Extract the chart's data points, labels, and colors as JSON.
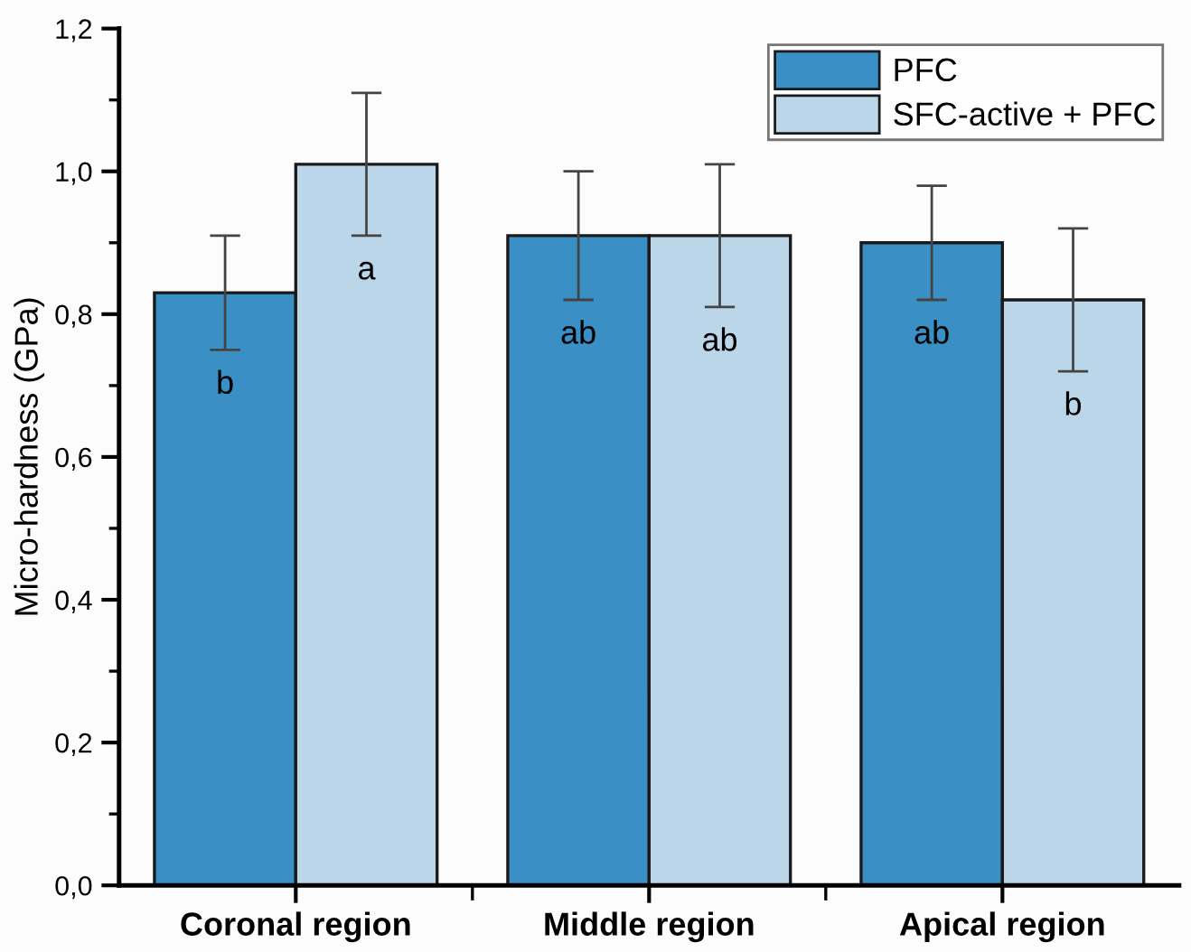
{
  "chart_data": {
    "type": "bar",
    "ylabel": "Micro-hardness (GPa)",
    "categories": [
      "Coronal region",
      "Middle region",
      "Apical region"
    ],
    "series": [
      {
        "name": "PFC",
        "color": "#3a8fc5",
        "values": [
          0.83,
          0.91,
          0.9
        ],
        "errors": [
          0.08,
          0.09,
          0.08
        ],
        "value_labels": [
          "b",
          "ab",
          "ab"
        ]
      },
      {
        "name": "SFC-active + PFC",
        "color": "#bcd6e9",
        "values": [
          1.01,
          0.91,
          0.82
        ],
        "errors": [
          0.1,
          0.1,
          0.1
        ],
        "value_labels": [
          "a",
          "ab",
          "b"
        ]
      }
    ],
    "ylim": [
      0,
      1.2
    ],
    "yticks": [
      {
        "value": 0,
        "label": "0,0"
      },
      {
        "value": 0.2,
        "label": "0,2"
      },
      {
        "value": 0.4,
        "label": "0,4"
      },
      {
        "value": 0.6,
        "label": "0,6"
      },
      {
        "value": 0.8,
        "label": "0,8"
      },
      {
        "value": 1.0,
        "label": "1,0"
      },
      {
        "value": 1.2,
        "label": "1,2"
      }
    ],
    "grid": false,
    "legend": "top right"
  }
}
